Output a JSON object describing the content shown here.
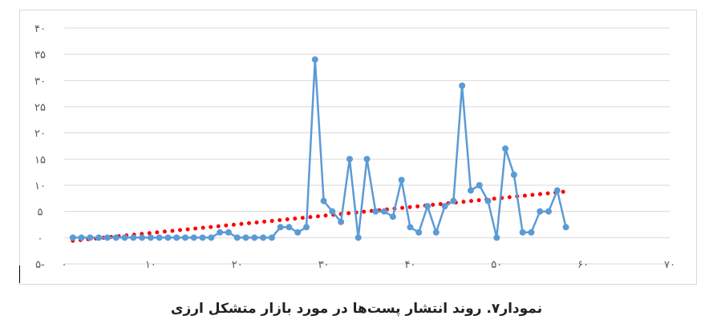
{
  "chart_data": {
    "type": "line",
    "title": "",
    "xlabel": "",
    "ylabel": "",
    "xlim": [
      0,
      70
    ],
    "ylim": [
      -5,
      40
    ],
    "x_ticks": [
      0,
      10,
      20,
      30,
      40,
      50,
      60,
      70
    ],
    "y_ticks": [
      -5,
      0,
      5,
      10,
      15,
      20,
      25,
      30,
      35,
      40
    ],
    "x_tick_labels": [
      "۰",
      "۱۰",
      "۲۰",
      "۳۰",
      "۴۰",
      "۵۰",
      "۶۰",
      "۷۰"
    ],
    "y_tick_labels": [
      "۵-",
      "۰",
      "۵",
      "۱۰",
      "۱۵",
      "۲۰",
      "۲۵",
      "۳۰",
      "۳۵",
      "۴۰"
    ],
    "grid": "horizontal",
    "legend": "none",
    "series": [
      {
        "color": "#5b9bd5",
        "style": "line-markers",
        "x": [
          1,
          2,
          3,
          4,
          5,
          6,
          7,
          8,
          9,
          10,
          11,
          12,
          13,
          14,
          15,
          16,
          17,
          18,
          19,
          20,
          21,
          22,
          23,
          24,
          25,
          26,
          27,
          28,
          29,
          30,
          31,
          32,
          33,
          34,
          35,
          36,
          37,
          38,
          39,
          40,
          41,
          42,
          43,
          44,
          45,
          46,
          47,
          48,
          49,
          50,
          51,
          52,
          53,
          54,
          55,
          56,
          57,
          58
        ],
        "values": [
          0,
          0,
          0,
          0,
          0,
          0,
          0,
          0,
          0,
          0,
          0,
          0,
          0,
          0,
          0,
          0,
          0,
          1,
          1,
          0,
          0,
          0,
          0,
          0,
          2,
          2,
          1,
          2,
          34,
          7,
          5,
          3,
          15,
          0,
          15,
          5,
          5,
          4,
          11,
          2,
          1,
          6,
          1,
          6,
          7,
          29,
          9,
          10,
          7,
          0,
          17,
          12,
          1,
          1,
          5,
          5,
          9,
          2
        ]
      },
      {
        "color": "#ff0000",
        "style": "dotted-trendline",
        "x": [
          1,
          58
        ],
        "values": [
          -0.6,
          8.8
        ]
      }
    ]
  },
  "caption": "نمودار۷. روند انتشار پست‌ها در مورد بازار متشکل ارزی"
}
